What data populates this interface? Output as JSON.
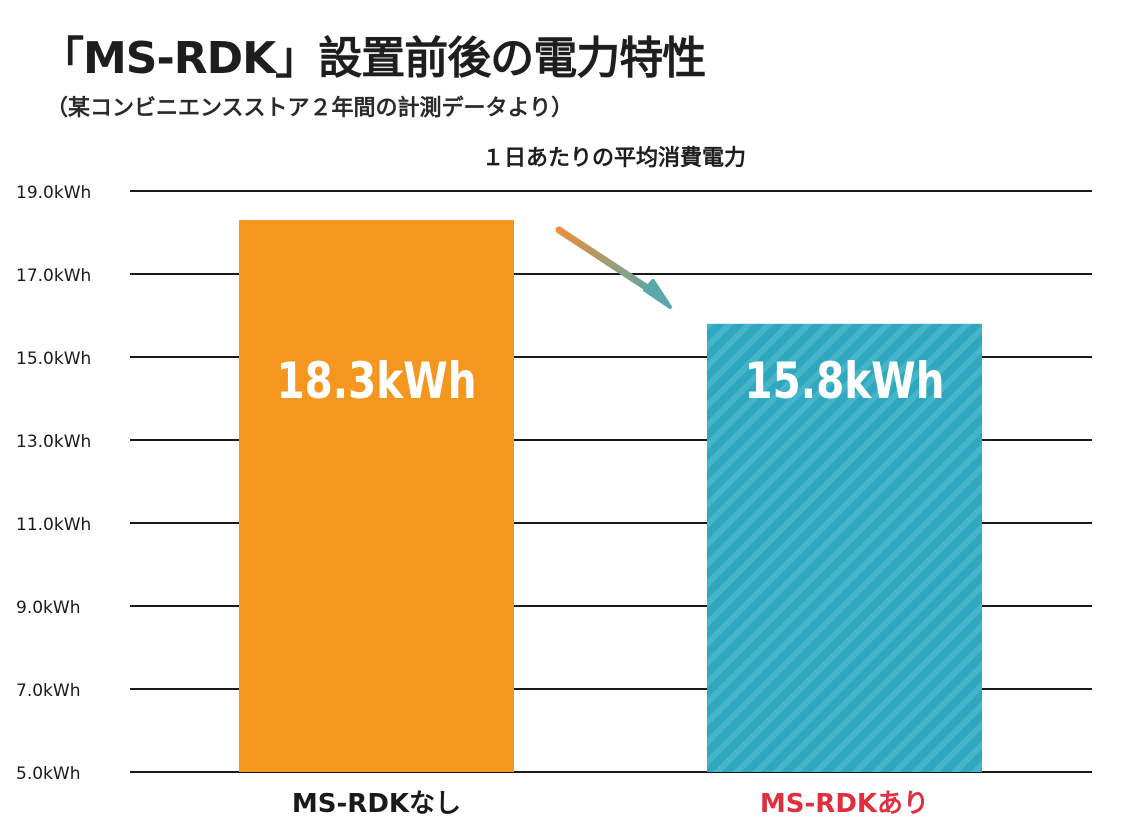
{
  "page": {
    "title": "「MS-RDK」設置前後の電力特性",
    "subtitle": "（某コンビニエンスストア２年間の計測データより）"
  },
  "chart_data": {
    "type": "bar",
    "title": "１日あたりの平均消費電力",
    "categories": [
      "MS-RDKなし",
      "MS-RDKあり"
    ],
    "values": [
      18.3,
      15.8
    ],
    "value_labels": [
      "18.3kWh",
      "15.8kWh"
    ],
    "unit": "kWh",
    "ylim": [
      5.0,
      19.0
    ],
    "yticks": [
      5.0,
      7.0,
      9.0,
      11.0,
      13.0,
      15.0,
      17.0,
      19.0
    ],
    "ytick_labels": [
      "5.0kWh",
      "7.0kWh",
      "9.0kWh",
      "11.0kWh",
      "13.0kWh",
      "15.0kWh",
      "17.0kWh",
      "19.0kWh"
    ],
    "grid": true,
    "legend": "none",
    "bar_colors": [
      "#f5961f",
      "#2fa8bf"
    ],
    "bar_patterns": [
      "solid",
      "diagonal-stripes"
    ],
    "category_label_colors": [
      "#1a1a1a",
      "#e0303f"
    ],
    "annotation": "arrow-down-right",
    "arrow_colors": [
      "#e8903a",
      "#5aa8a8"
    ]
  }
}
